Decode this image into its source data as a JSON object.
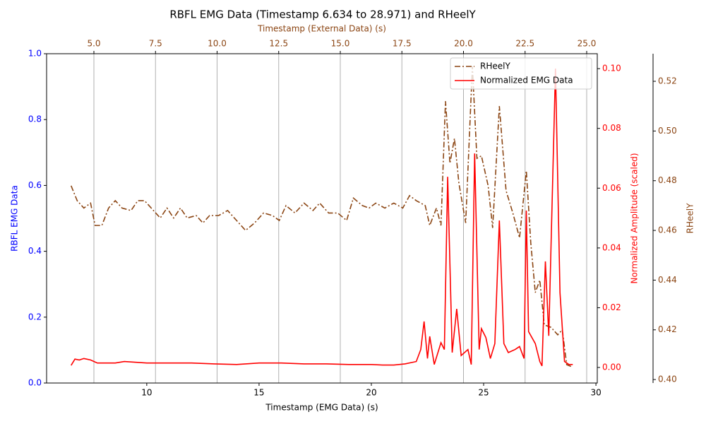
{
  "chart_data": {
    "type": "line",
    "title": "RBFL EMG Data (Timestamp 6.634 to 28.971) and RHeelY",
    "xlabel": "Timestamp (EMG Data) (s)",
    "x2label": "Timestamp (External Data) (s)",
    "ylabel": "RBFL EMG Data",
    "y2label": "Normalized Amplitude (scaled)",
    "y3label": "RHeelY",
    "xlim": [
      5.54,
      30.06
    ],
    "xticks": [
      10,
      15,
      20,
      25,
      30
    ],
    "x2lim": [
      3.08,
      25.43
    ],
    "x2ticks": [
      {
        "value": 5,
        "label": "5.0"
      },
      7.5,
      {
        "value": 10,
        "label": "10.0"
      },
      12.5,
      {
        "value": 15,
        "label": "15.0"
      },
      17.5,
      {
        "value": 20,
        "label": "20.0"
      },
      22.5,
      {
        "value": 25,
        "label": "25.0"
      }
    ],
    "ylim": [
      0,
      1
    ],
    "yticks": [
      {
        "value": 0,
        "label": "0.0"
      },
      0.2,
      0.4,
      0.6,
      0.8,
      {
        "value": 1,
        "label": "1.0"
      }
    ],
    "y2lim": [
      -0.0052,
      0.105
    ],
    "y2ticks": [
      {
        "value": 0,
        "label": "0.00"
      },
      {
        "value": 0.02,
        "label": "0.02"
      },
      {
        "value": 0.04,
        "label": "0.04"
      },
      {
        "value": 0.06,
        "label": "0.06"
      },
      {
        "value": 0.08,
        "label": "0.08"
      },
      {
        "value": 0.1,
        "label": "0.10"
      }
    ],
    "y3lim": [
      0.3986,
      0.5311
    ],
    "y3ticks": [
      {
        "value": 0.4,
        "label": "0.40"
      },
      0.42,
      0.44,
      0.46,
      0.48,
      {
        "value": 0.5,
        "label": "0.50"
      },
      0.52
    ],
    "axis_colors": {
      "x": "#000000",
      "x2": "#8B4513",
      "y": "#0000ff",
      "y2": "#ff0000",
      "y3": "#8B4513"
    },
    "grid_x2": true,
    "legend": "upper right",
    "series": [
      {
        "name": "RHeelY",
        "color": "#8B4513",
        "axis": "y3",
        "style": "dashdot",
        "x": [
          6.63,
          6.9,
          7.2,
          7.5,
          7.7,
          8.0,
          8.3,
          8.6,
          8.9,
          9.3,
          9.6,
          9.9,
          10.2,
          10.6,
          10.9,
          11.2,
          11.5,
          11.8,
          12.2,
          12.5,
          12.8,
          13.2,
          13.6,
          14.0,
          14.4,
          14.8,
          15.2,
          15.6,
          15.9,
          16.2,
          16.6,
          17.0,
          17.4,
          17.7,
          18.1,
          18.5,
          18.9,
          19.2,
          19.6,
          19.9,
          20.2,
          20.6,
          21.0,
          21.4,
          21.7,
          22.0,
          22.4,
          22.6,
          22.9,
          23.1,
          23.3,
          23.5,
          23.7,
          23.9,
          24.2,
          24.5,
          24.7,
          24.9,
          25.2,
          25.4,
          25.7,
          26.0,
          26.3,
          26.6,
          26.9,
          27.1,
          27.3,
          27.5,
          27.7,
          28.0,
          28.3,
          28.5,
          28.7,
          28.97
        ],
        "values": [
          0.478,
          0.472,
          0.469,
          0.471,
          0.462,
          0.462,
          0.469,
          0.472,
          0.469,
          0.468,
          0.472,
          0.472,
          0.469,
          0.465,
          0.469,
          0.465,
          0.469,
          0.465,
          0.466,
          0.463,
          0.466,
          0.466,
          0.468,
          0.464,
          0.46,
          0.463,
          0.467,
          0.466,
          0.464,
          0.47,
          0.467,
          0.471,
          0.468,
          0.471,
          0.467,
          0.467,
          0.464,
          0.473,
          0.47,
          0.469,
          0.471,
          0.469,
          0.471,
          0.469,
          0.474,
          0.472,
          0.47,
          0.462,
          0.469,
          0.462,
          0.512,
          0.487,
          0.497,
          0.479,
          0.463,
          0.526,
          0.489,
          0.49,
          0.478,
          0.461,
          0.51,
          0.476,
          0.467,
          0.457,
          0.484,
          0.455,
          0.435,
          0.44,
          0.422,
          0.421,
          0.418,
          0.42,
          0.406,
          0.405
        ]
      },
      {
        "name": "Normalized EMG Data",
        "color": "#ff0000",
        "axis": "y2",
        "style": "solid",
        "x": [
          6.63,
          6.8,
          7.0,
          7.2,
          7.5,
          7.8,
          8.2,
          8.6,
          9.0,
          10.0,
          11.0,
          12.0,
          13.0,
          14.0,
          15.0,
          16.0,
          17.0,
          18.0,
          19.0,
          20.0,
          20.5,
          21.0,
          21.5,
          22.0,
          22.2,
          22.35,
          22.5,
          22.6,
          22.8,
          23.1,
          23.25,
          23.4,
          23.6,
          23.8,
          24.0,
          24.3,
          24.45,
          24.6,
          24.8,
          24.9,
          25.1,
          25.3,
          25.5,
          25.7,
          25.9,
          26.1,
          26.4,
          26.6,
          26.8,
          26.9,
          27.0,
          27.3,
          27.5,
          27.6,
          27.75,
          27.9,
          28.2,
          28.4,
          28.6,
          28.8,
          28.97
        ],
        "values": [
          0.0007,
          0.0028,
          0.0025,
          0.003,
          0.0025,
          0.0015,
          0.0015,
          0.0015,
          0.002,
          0.0015,
          0.0015,
          0.0015,
          0.0012,
          0.001,
          0.0015,
          0.0015,
          0.0012,
          0.0012,
          0.001,
          0.001,
          0.0008,
          0.0008,
          0.0012,
          0.002,
          0.006,
          0.0154,
          0.003,
          0.0104,
          0.001,
          0.0083,
          0.006,
          0.0638,
          0.005,
          0.0196,
          0.004,
          0.006,
          0.001,
          0.0716,
          0.006,
          0.013,
          0.01,
          0.003,
          0.008,
          0.0492,
          0.008,
          0.005,
          0.006,
          0.007,
          0.003,
          0.0525,
          0.012,
          0.008,
          0.002,
          0.0005,
          0.0355,
          0.0106,
          0.1,
          0.025,
          0.002,
          0.001,
          0.001
        ]
      }
    ]
  }
}
